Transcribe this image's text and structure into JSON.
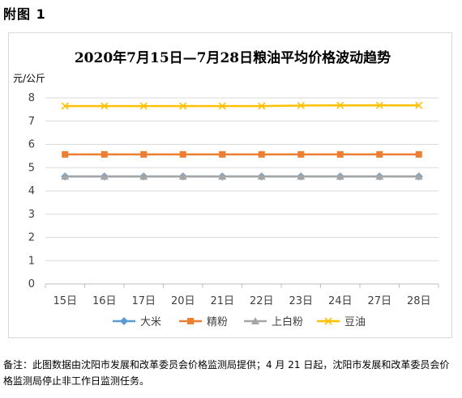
{
  "figure_label": "附图 1",
  "note": "备注：此图数据由沈阳市发展和改革委员会价格监测局提供；4 月 21 日起，沈阳市发展和改革委员会价格监测局停止非工作日监测任务。",
  "chart_data": {
    "type": "line",
    "title": "2020年7月15日—7月28日粮油平均价格波动趋势",
    "ylabel": "元/公斤",
    "xlabel": "",
    "categories": [
      "15日",
      "16日",
      "17日",
      "20日",
      "21日",
      "22日",
      "23日",
      "24日",
      "27日",
      "28日"
    ],
    "ylim": [
      0,
      8
    ],
    "yticks": [
      0,
      1,
      2,
      3,
      4,
      5,
      6,
      7,
      8
    ],
    "grid": true,
    "legend_position": "bottom",
    "series": [
      {
        "name": "大米",
        "color": "#5b9bd5",
        "marker": "diamond",
        "values": [
          4.62,
          4.62,
          4.62,
          4.62,
          4.62,
          4.62,
          4.62,
          4.62,
          4.62,
          4.62
        ]
      },
      {
        "name": "精粉",
        "color": "#ed7d31",
        "marker": "square",
        "values": [
          5.57,
          5.57,
          5.57,
          5.57,
          5.57,
          5.57,
          5.57,
          5.57,
          5.57,
          5.57
        ]
      },
      {
        "name": "上白粉",
        "color": "#a5a5a5",
        "marker": "triangle",
        "values": [
          4.62,
          4.62,
          4.62,
          4.62,
          4.62,
          4.62,
          4.62,
          4.62,
          4.62,
          4.62
        ]
      },
      {
        "name": "豆油",
        "color": "#ffc000",
        "marker": "x",
        "values": [
          7.65,
          7.65,
          7.65,
          7.65,
          7.65,
          7.65,
          7.67,
          7.68,
          7.68,
          7.68
        ]
      }
    ]
  }
}
